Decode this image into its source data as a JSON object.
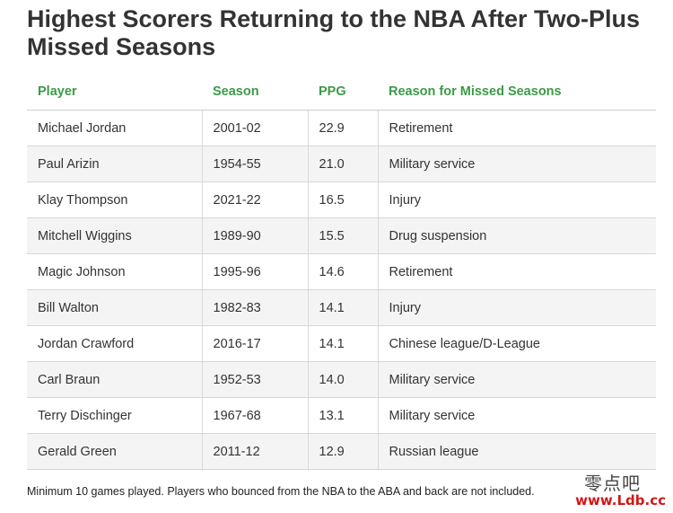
{
  "chart_data": {
    "type": "table",
    "title": "Highest Scorers Returning to the NBA After Two-Plus Missed Seasons",
    "columns": [
      "Player",
      "Season",
      "PPG",
      "Reason for Missed Seasons"
    ],
    "rows": [
      [
        "Michael Jordan",
        "2001-02",
        "22.9",
        "Retirement"
      ],
      [
        "Paul Arizin",
        "1954-55",
        "21.0",
        "Military service"
      ],
      [
        "Klay Thompson",
        "2021-22",
        "16.5",
        "Injury"
      ],
      [
        "Mitchell Wiggins",
        "1989-90",
        "15.5",
        "Drug suspension"
      ],
      [
        "Magic Johnson",
        "1995-96",
        "14.6",
        "Retirement"
      ],
      [
        "Bill Walton",
        "1982-83",
        "14.1",
        "Injury"
      ],
      [
        "Jordan Crawford",
        "2016-17",
        "14.1",
        "Chinese league/D-League"
      ],
      [
        "Carl Braun",
        "1952-53",
        "14.0",
        "Military service"
      ],
      [
        "Terry Dischinger",
        "1967-68",
        "13.1",
        "Military service"
      ],
      [
        "Gerald Green",
        "2011-12",
        "12.9",
        "Russian league"
      ]
    ],
    "footnote": "Minimum 10 games played. Players who bounced from the NBA to the ABA and back are not included.",
    "header_color": "#3c9a48"
  },
  "watermark": {
    "cjk": "零点吧",
    "url": "www.Ldb.cc"
  }
}
